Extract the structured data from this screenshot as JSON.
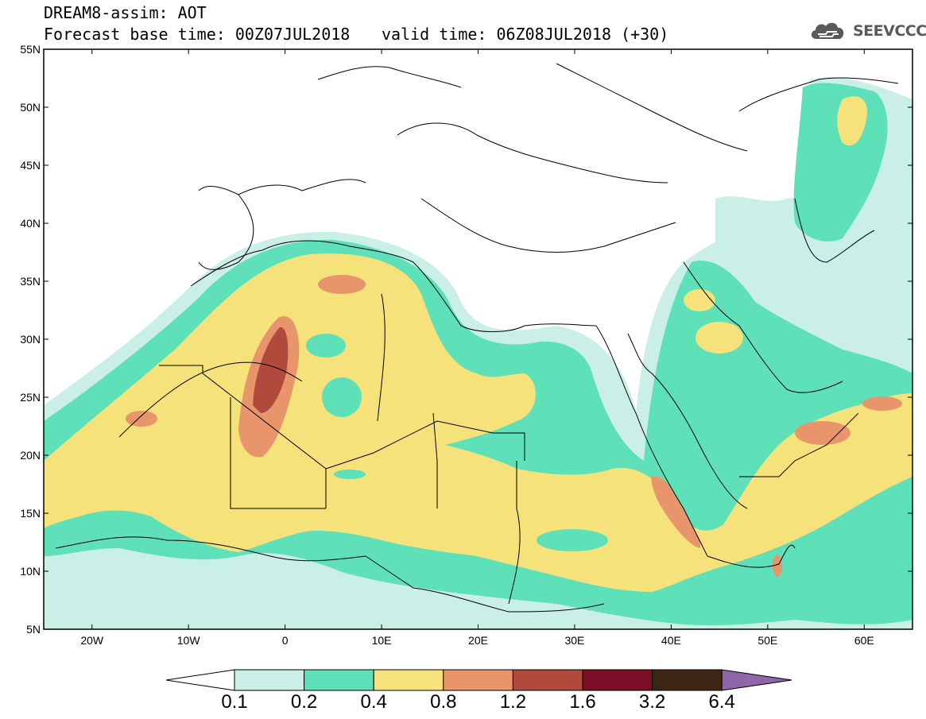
{
  "header": {
    "line1": "DREAM8-assim: AOT",
    "line2": "Forecast base time: 00Z07JUL2018",
    "line3": "valid time: 06Z08JUL2018 (+30)"
  },
  "logo": {
    "text": "SEEVCCC",
    "icon": "cloud-icon"
  },
  "map": {
    "projection": "lat-lon",
    "lon_range": [
      -25,
      65
    ],
    "lat_range": [
      5,
      55
    ],
    "lon_ticks": [
      "20W",
      "10W",
      "0",
      "10E",
      "20E",
      "30E",
      "40E",
      "50E",
      "60E"
    ],
    "lat_ticks": [
      "55N",
      "50N",
      "45N",
      "40N",
      "35N",
      "30N",
      "25N",
      "20N",
      "15N",
      "10N",
      "5N"
    ],
    "field": "aerosol optical thickness"
  },
  "colorbar": {
    "labels": [
      "0.1",
      "0.2",
      "0.4",
      "0.8",
      "1.2",
      "1.6",
      "3.2",
      "6.4"
    ],
    "colors": [
      "#c9efe6",
      "#5ee0b8",
      "#f5e27a",
      "#e8956c",
      "#b04a3c",
      "#7a0e26",
      "#3d2616"
    ],
    "under_color": "#ffffff",
    "over_color": "#8f66a9"
  }
}
